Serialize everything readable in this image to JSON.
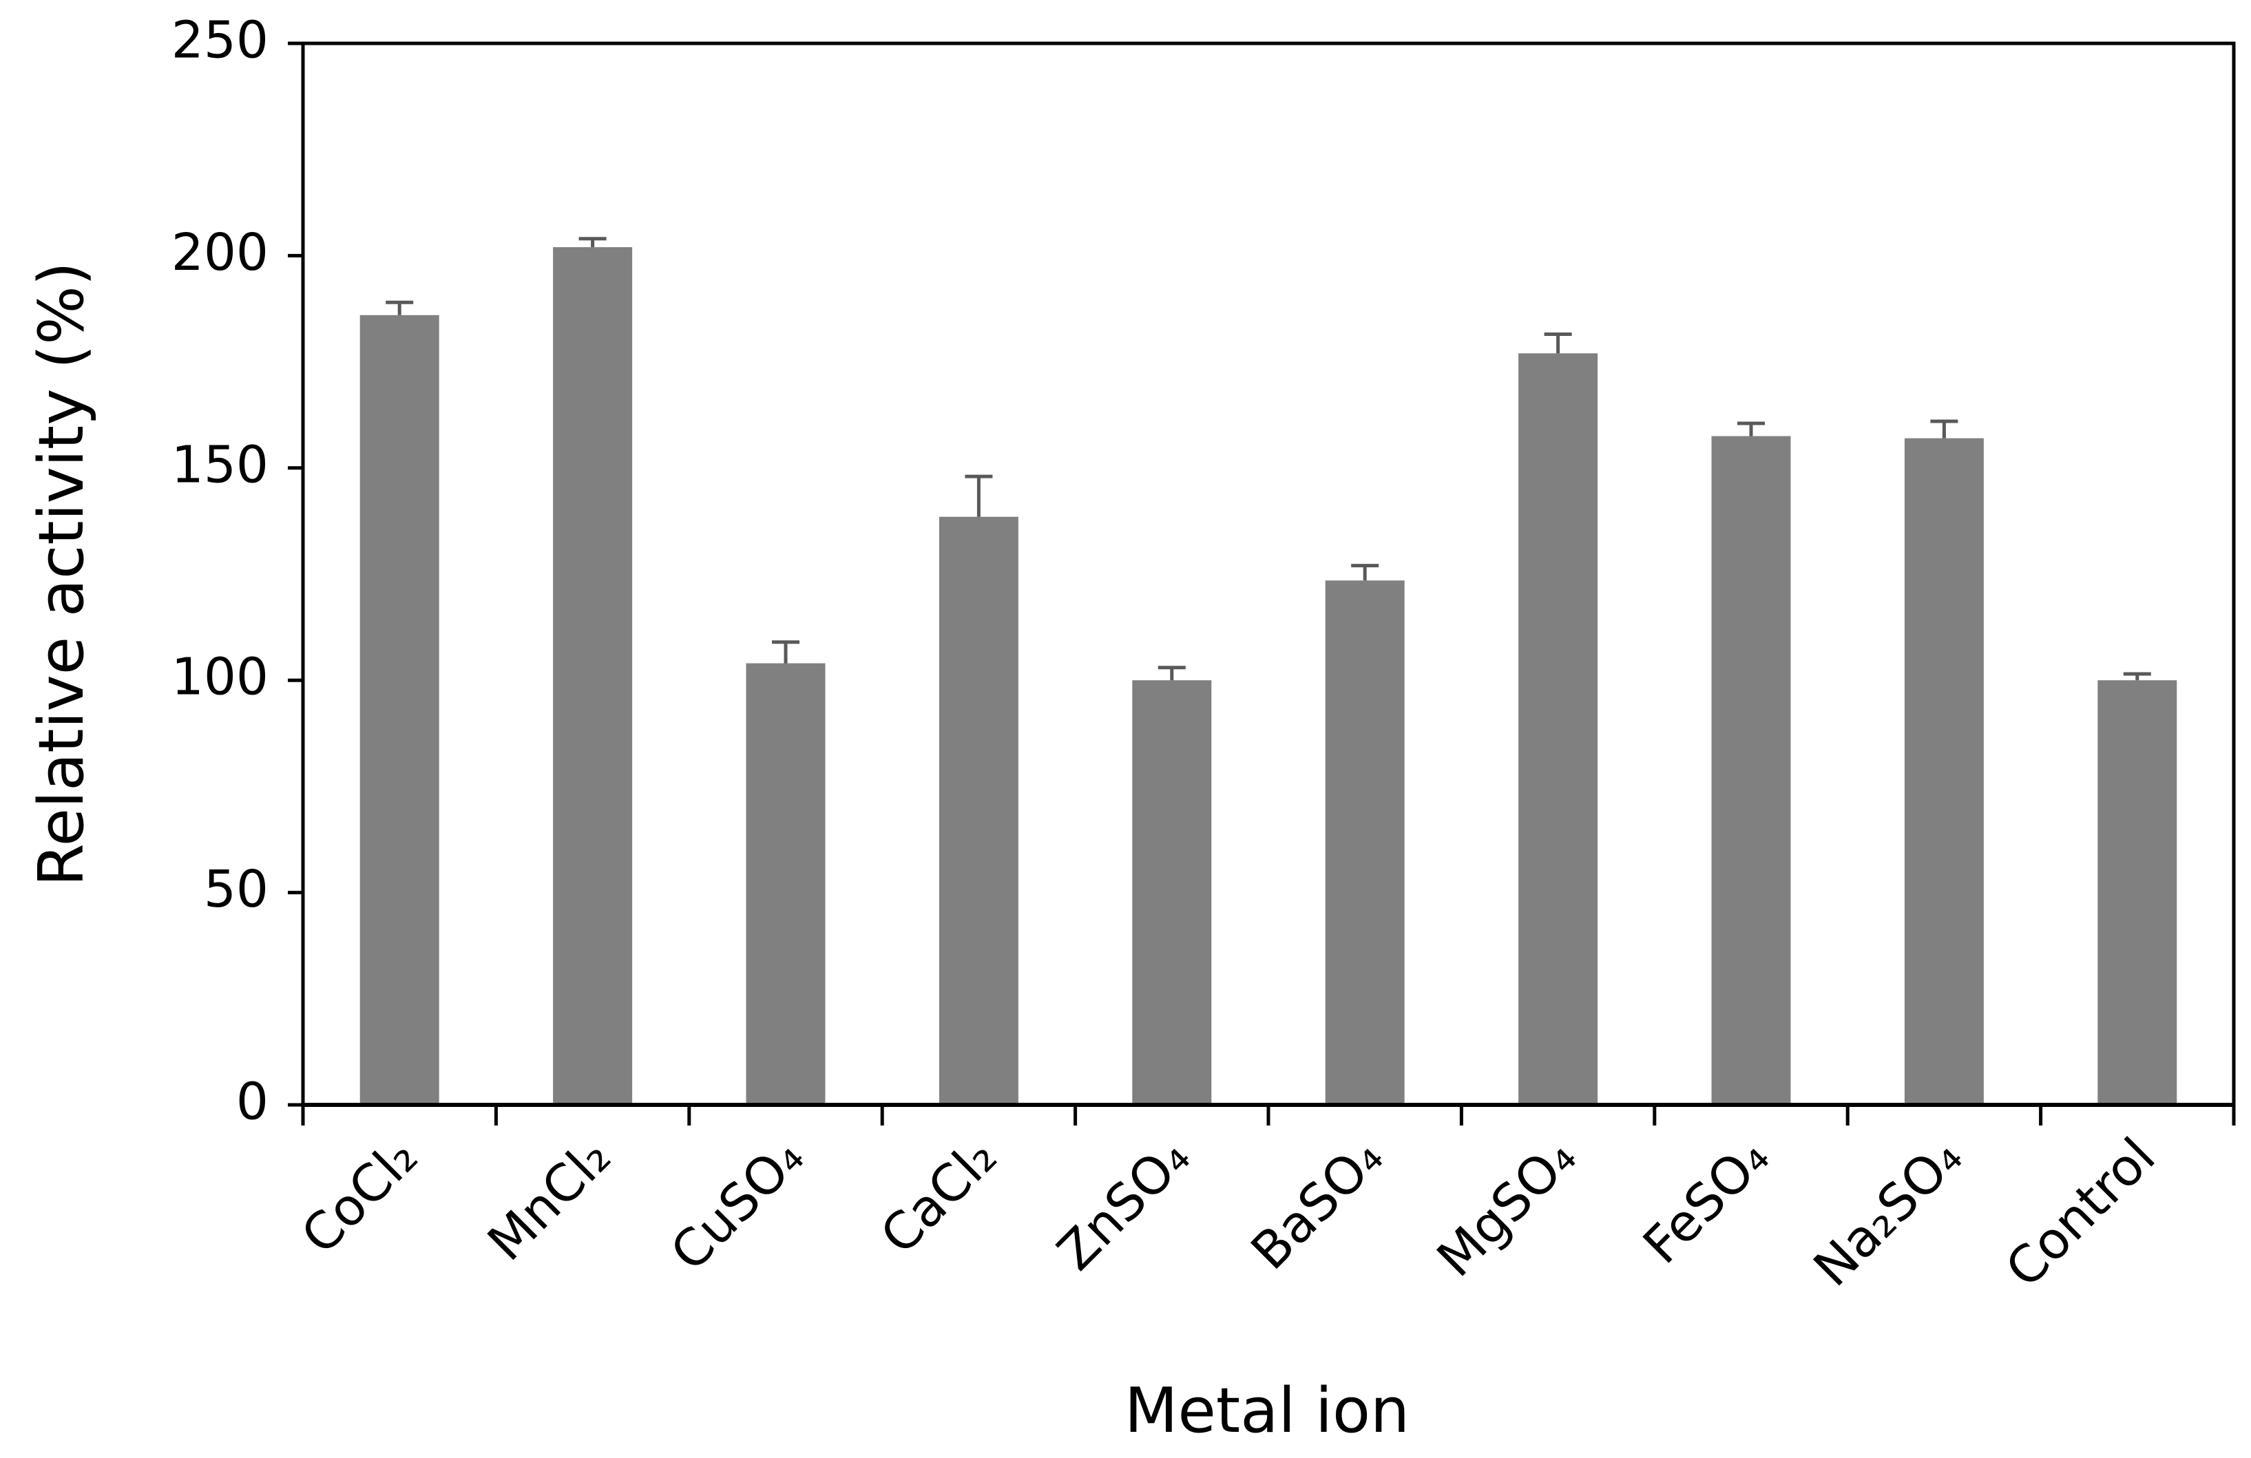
{
  "chart_data": {
    "type": "bar",
    "xlabel": "Metal ion",
    "ylabel": "Relative activity (%)",
    "categories": [
      "CoCl₂",
      "MnCl₂",
      "CuSO₄",
      "CaCl₂",
      "ZnSO₄",
      "BaSO₄",
      "MgSO₄",
      "FeSO₄",
      "Na₂SO₄",
      "Control"
    ],
    "values": [
      186,
      202,
      104,
      138.5,
      100,
      123.5,
      177,
      157.5,
      157,
      100
    ],
    "errors": [
      3,
      2,
      5,
      9.5,
      3,
      3.5,
      4.5,
      3,
      4,
      1.5
    ],
    "color": "#808080",
    "ylim": [
      0,
      250
    ],
    "yticks": [
      0,
      50,
      100,
      150,
      200,
      250
    ]
  }
}
